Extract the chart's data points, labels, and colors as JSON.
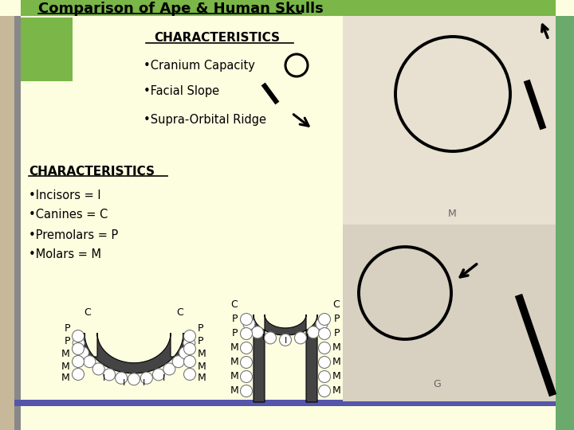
{
  "title": "Comparison of Ape & Human Skulls",
  "title_bg_color": "#7ab648",
  "content_bg": "#fdfde0",
  "left_sidebar_color": "#c8b89a",
  "left_gray_strip": "#888888",
  "right_sidebar_color": "#6aaa6a",
  "bottom_strip_color": "#5555aa",
  "section1_header": "CHARACTERISTICS",
  "bullet1": "•Cranium Capacity",
  "bullet2": "•Facial Slope",
  "bullet3": "•Supra-Orbital Ridge",
  "section2_header": "CHARACTERISTICS",
  "char1": "•Incisors = I",
  "char2": "•Canines = C",
  "char3": "•Premolars = P",
  "char4": "•Molars = M"
}
